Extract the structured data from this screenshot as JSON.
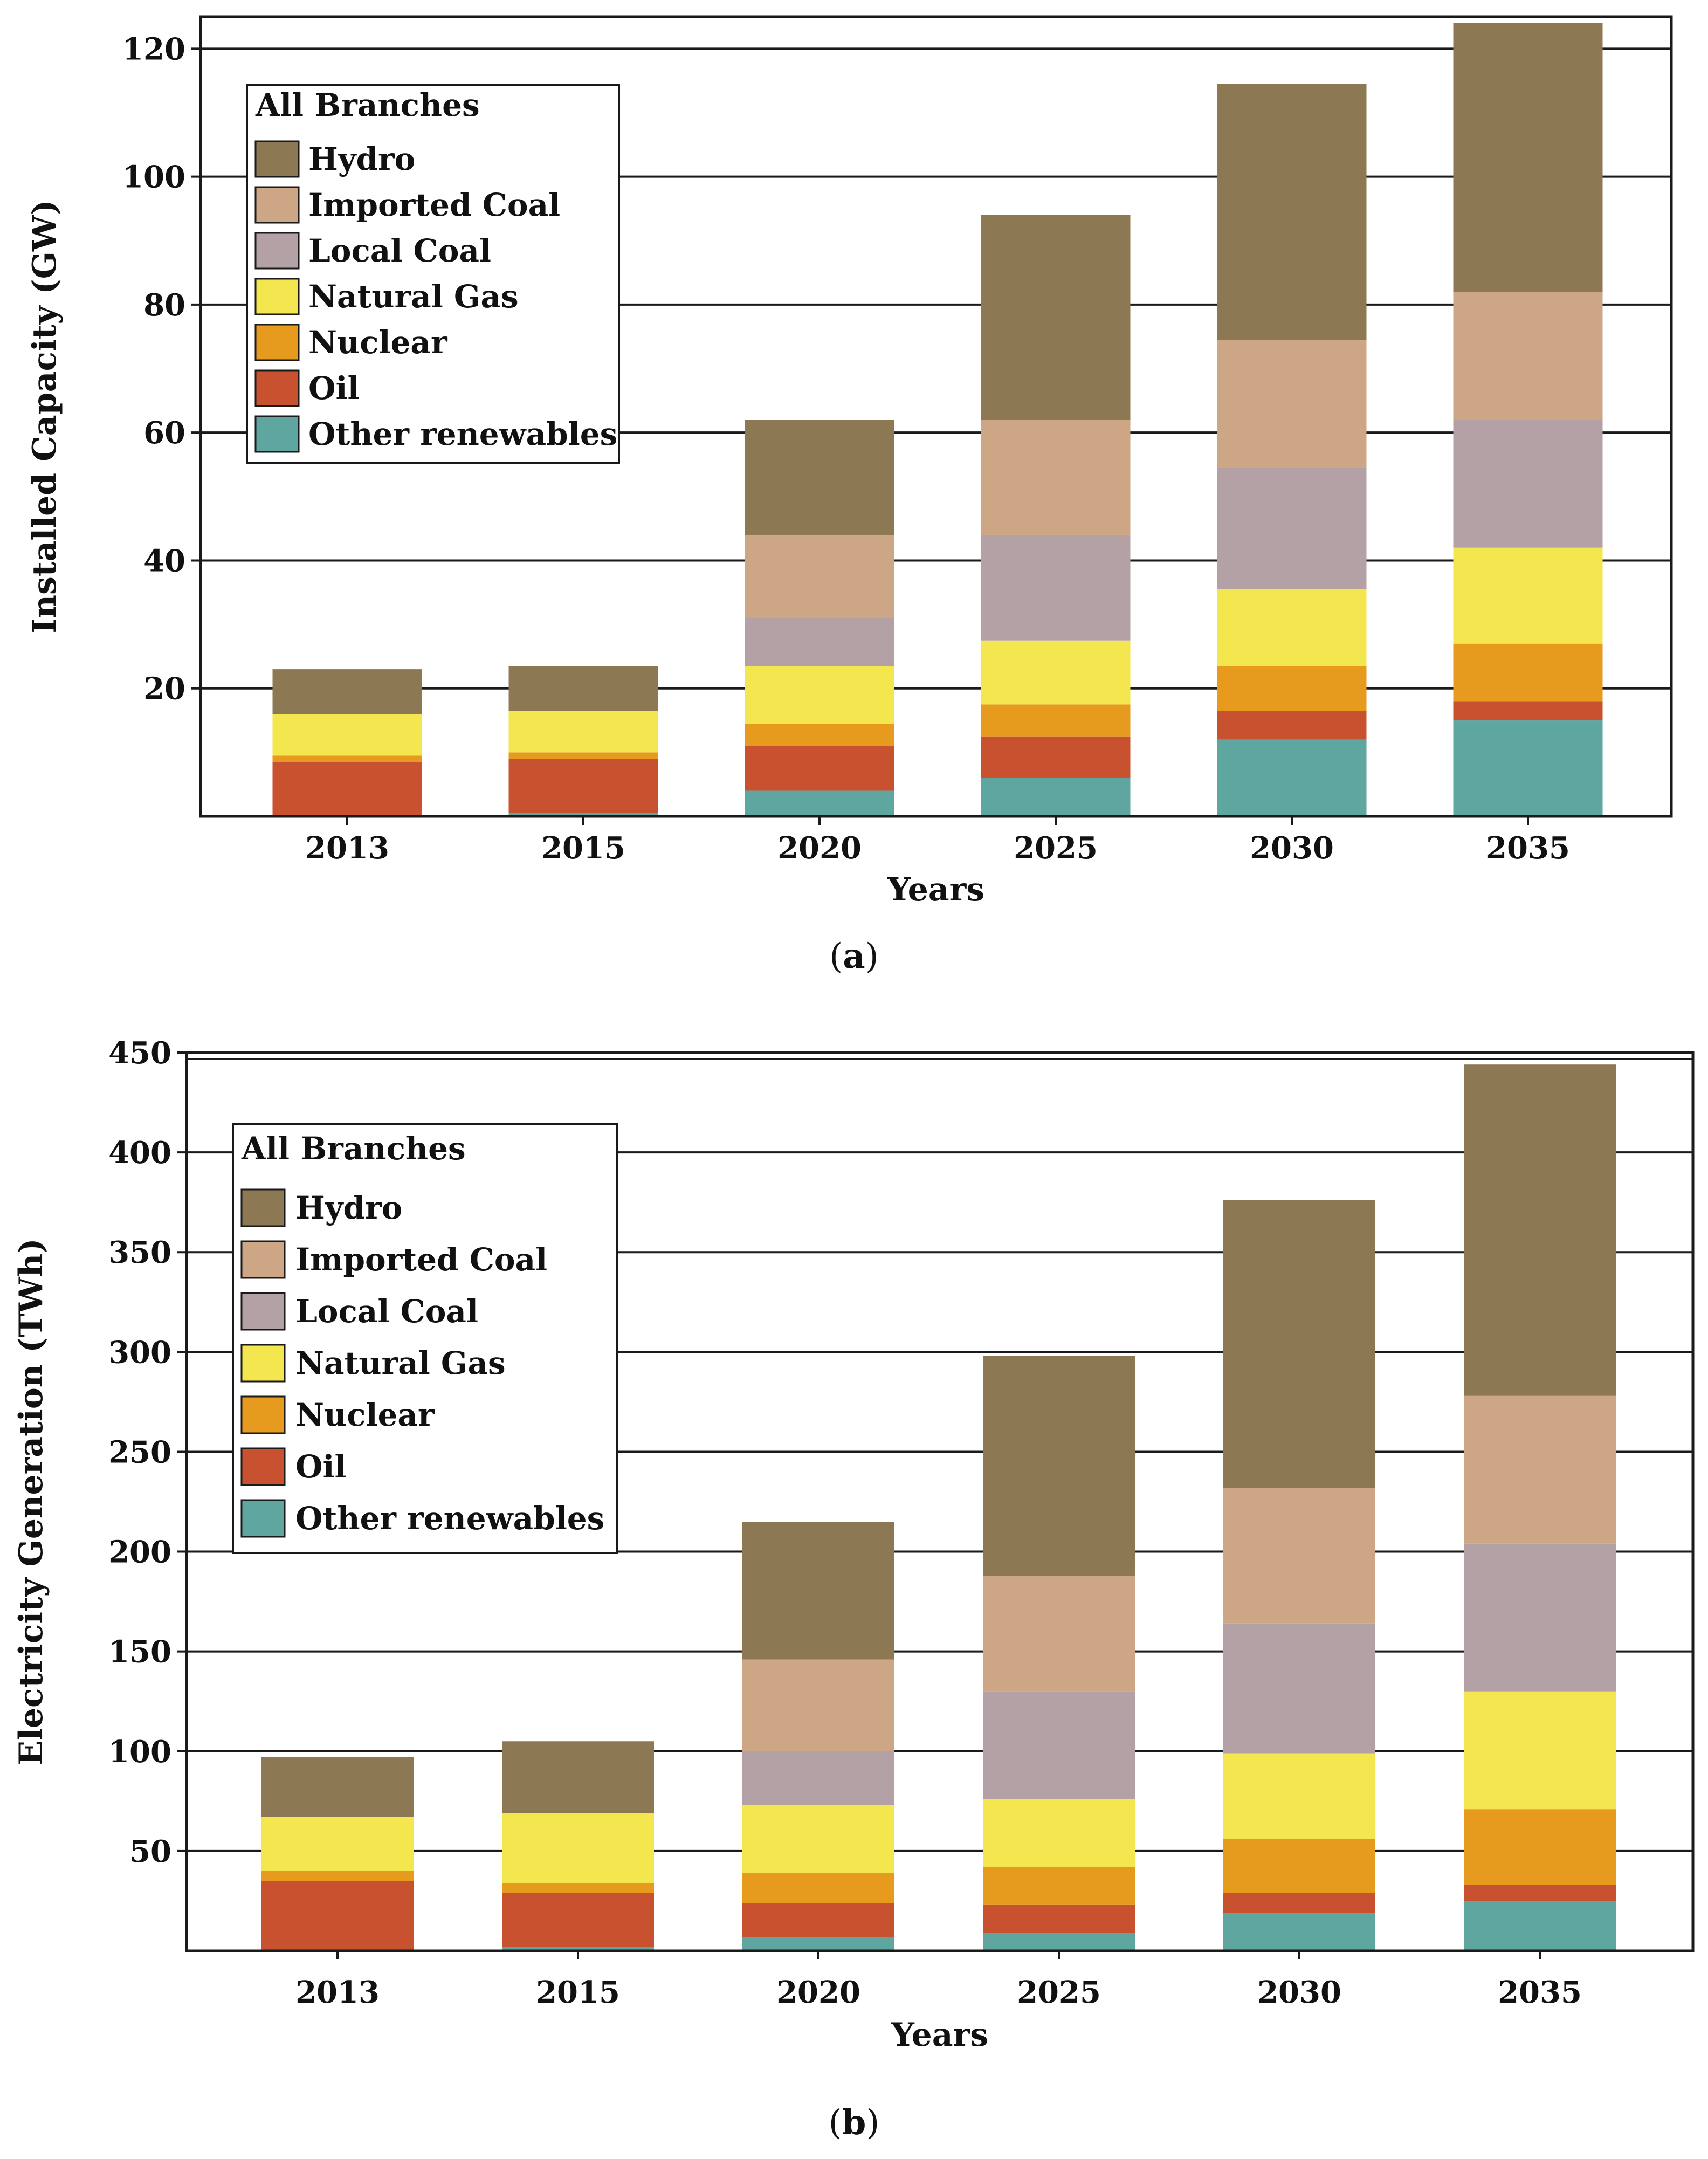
{
  "chart_data": [
    {
      "type": "bar",
      "stacked": true,
      "categories": [
        "2013",
        "2015",
        "2020",
        "2025",
        "2030",
        "2035"
      ],
      "series": [
        {
          "name": "Other renewables",
          "color": "#5fa6a1",
          "values": [
            0,
            0.5,
            4,
            6,
            12,
            15
          ]
        },
        {
          "name": "Oil",
          "color": "#c8522f",
          "values": [
            8.5,
            8.5,
            7,
            6.5,
            4.5,
            3
          ]
        },
        {
          "name": "Nuclear",
          "color": "#e69b1e",
          "values": [
            1,
            1,
            3.5,
            5,
            7,
            9
          ]
        },
        {
          "name": "Natural Gas",
          "color": "#f3e64f",
          "values": [
            6.5,
            6.5,
            9,
            10,
            12,
            15
          ]
        },
        {
          "name": "Local Coal",
          "color": "#b4a1a5",
          "values": [
            0,
            0,
            7.5,
            16.5,
            19,
            20
          ]
        },
        {
          "name": "Imported Coal",
          "color": "#cda686",
          "values": [
            0,
            0,
            13,
            18,
            20,
            20
          ]
        },
        {
          "name": "Hydro",
          "color": "#8c7852",
          "values": [
            7,
            7,
            18,
            32,
            40,
            42
          ]
        }
      ],
      "legend_title": "All Branches",
      "xlabel": "Years",
      "ylabel": "Installed Capacity (GW)",
      "yticks": [
        20,
        40,
        60,
        80,
        100,
        120
      ],
      "ylim": [
        0,
        125
      ],
      "grid": true,
      "legend_position": "top-left",
      "caption_letter": "a"
    },
    {
      "type": "bar",
      "stacked": true,
      "categories": [
        "2013",
        "2015",
        "2020",
        "2025",
        "2030",
        "2035"
      ],
      "series": [
        {
          "name": "Other renewables",
          "color": "#5fa6a1",
          "values": [
            0,
            2,
            7,
            9,
            19,
            25
          ]
        },
        {
          "name": "Oil",
          "color": "#c8522f",
          "values": [
            35,
            27,
            17,
            14,
            10,
            8
          ]
        },
        {
          "name": "Nuclear",
          "color": "#e69b1e",
          "values": [
            5,
            5,
            15,
            19,
            27,
            38
          ]
        },
        {
          "name": "Natural Gas",
          "color": "#f3e64f",
          "values": [
            27,
            35,
            34,
            34,
            43,
            59
          ]
        },
        {
          "name": "Local Coal",
          "color": "#b4a1a5",
          "values": [
            0,
            0,
            27,
            54,
            65,
            74
          ]
        },
        {
          "name": "Imported Coal",
          "color": "#cda686",
          "values": [
            0,
            0,
            46,
            58,
            68,
            74
          ]
        },
        {
          "name": "Hydro",
          "color": "#8c7852",
          "values": [
            30,
            36,
            69,
            110,
            144,
            166
          ]
        }
      ],
      "legend_title": "All Branches",
      "xlabel": "Years",
      "ylabel": "Electricity Generation (TWh)",
      "yticks": [
        50,
        100,
        150,
        200,
        250,
        300,
        350,
        400,
        450
      ],
      "ylim": [
        0,
        450
      ],
      "grid": true,
      "legend_position": "top-left",
      "caption_letter": "b"
    }
  ],
  "legend_order": [
    "Hydro",
    "Imported Coal",
    "Local Coal",
    "Natural Gas",
    "Nuclear",
    "Oil",
    "Other renewables"
  ],
  "captions": {
    "a": "a",
    "b": "b"
  }
}
